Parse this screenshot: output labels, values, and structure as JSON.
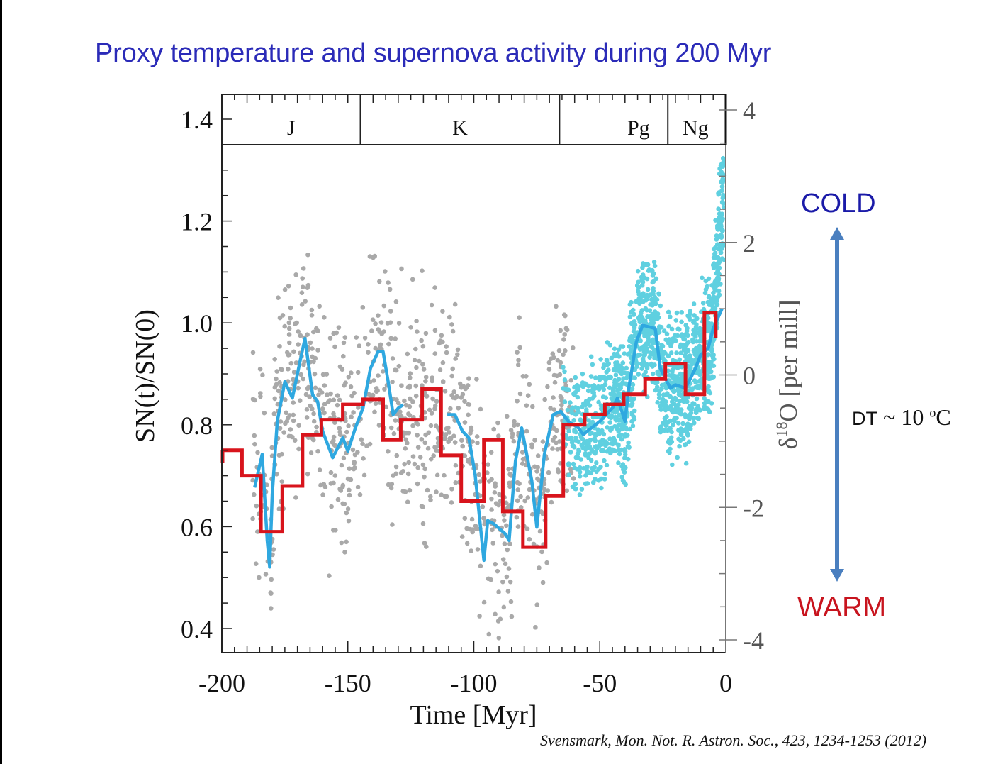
{
  "slide": {
    "title": "Proxy temperature and supernova activity during 200 Myr",
    "citation": "Svensmark, Mon. Not. R. Astron. Soc., 423, 1234-1253 (2012)",
    "annotations": {
      "cold": "COLD",
      "warm": "WARM",
      "dt_prefix": "DT",
      "dt_value": " ~ 10 ",
      "dt_unit_sup": "o",
      "dt_unit": "C",
      "arrow": "double-headed-arrow-icon"
    },
    "colors": {
      "title": "#2b2bb8",
      "cold": "#1a1aa8",
      "warm": "#c8141e",
      "arrow": "#4a7fbf",
      "sn_step": "#d8141c",
      "d18o_smoothed": "#2fa8e0",
      "d18o_scatter_old": "#a9a9a9",
      "d18o_scatter_young": "#5fd0e0"
    }
  },
  "chart_data": {
    "type": "line",
    "xlabel": "Time [Myr]",
    "ylabel_left": "SN(t)/SN(0)",
    "ylabel_right_prefix": "δ",
    "ylabel_right_sup": "18",
    "ylabel_right_suffix": "O [per mill]",
    "xlim": [
      -200,
      0
    ],
    "ylim_left": [
      0.35,
      1.45
    ],
    "ylim_right": [
      -4.1,
      4.6
    ],
    "x_ticks": [
      -200,
      -150,
      -100,
      -50,
      0
    ],
    "x_tick_labels": [
      "-200",
      "-150",
      "-100",
      "-50",
      "0"
    ],
    "y_left_ticks": [
      0.4,
      0.6,
      0.8,
      1.0,
      1.2,
      1.4
    ],
    "y_left_tick_labels": [
      "0.4",
      "0.6",
      "0.8",
      "1.0",
      "1.2",
      "1.4"
    ],
    "y_right_ticks": [
      -4,
      -2,
      0,
      2,
      4
    ],
    "y_right_tick_labels": [
      "-4",
      "-2",
      "0",
      "2",
      "4"
    ],
    "geologic_periods": [
      {
        "label": "J",
        "start": -200,
        "end": -145
      },
      {
        "label": "K",
        "start": -145,
        "end": -66
      },
      {
        "label": "Pg",
        "start": -66,
        "end": -23
      },
      {
        "label": "Ng",
        "start": -23,
        "end": -1
      }
    ],
    "grid": false,
    "series": [
      {
        "name": "Supernova rate SN(t)/SN(0)",
        "kind": "step",
        "axis": "left",
        "x_edges": [
          -200,
          -192,
          -184.5,
          -176,
          -168,
          -160.5,
          -152,
          -144,
          -136,
          -129,
          -120.5,
          -113,
          -105,
          -96,
          -88.5,
          -80.5,
          -71.5,
          -64.5,
          -56,
          -48,
          -40.5,
          -32,
          -24,
          -16,
          -8.5,
          -4
        ],
        "values": [
          0.75,
          0.7,
          0.59,
          0.68,
          0.78,
          0.81,
          0.84,
          0.85,
          0.77,
          0.81,
          0.87,
          0.74,
          0.65,
          0.77,
          0.63,
          0.56,
          0.66,
          0.8,
          0.82,
          0.84,
          0.86,
          0.89,
          0.92,
          0.86,
          1.02,
          0.97
        ]
      },
      {
        "name": "δ18O smoothed",
        "kind": "line",
        "axis": "right",
        "x": [
          -187,
          -184,
          -182,
          -181,
          -180,
          -178,
          -175,
          -172,
          -169,
          -167,
          -164,
          -162,
          -160,
          -156,
          -152,
          -150,
          -147,
          -144,
          -141,
          -138,
          -136,
          -134,
          -132,
          -130,
          -128
        ],
        "values": [
          -1.7,
          -1.2,
          -2.5,
          -2.9,
          -1.8,
          -0.7,
          -0.1,
          -0.35,
          0.2,
          0.55,
          -0.3,
          -0.4,
          -0.85,
          -1.25,
          -0.95,
          -1.15,
          -0.8,
          -0.5,
          0.1,
          0.35,
          0.35,
          -0.1,
          -0.6,
          -0.5,
          -0.45
        ],
        "x2": [
          -110.5,
          -107.5,
          -104.5,
          -102,
          -99.5,
          -96,
          -94.5,
          -92,
          -87.5,
          -86,
          -83.5,
          -81,
          -77,
          -75,
          -72,
          -68.5,
          -65.5,
          -62.5,
          -58.5,
          -56.5,
          -55,
          -50,
          -45,
          -43,
          -40,
          -38.5,
          -35.5,
          -33,
          -28,
          -26,
          -22,
          -20,
          -16,
          -14,
          -12,
          -10,
          -7,
          -5,
          -1.5
        ],
        "values2": [
          -0.6,
          -0.6,
          -0.85,
          -0.95,
          -1.5,
          -2.8,
          -2.2,
          -2.25,
          -2.4,
          -2.5,
          -1.3,
          -0.8,
          -1.6,
          -2.3,
          -1.2,
          -0.6,
          -0.55,
          -0.7,
          -0.8,
          -0.9,
          -0.85,
          -0.7,
          -0.5,
          -0.35,
          -0.7,
          -0.2,
          0.5,
          0.75,
          0.7,
          0.1,
          -0.2,
          -0.15,
          -0.2,
          -0.05,
          0.1,
          0.3,
          0.4,
          0.7,
          1.0
        ]
      },
      {
        "name": "δ18O measurements (older, grey)",
        "kind": "scatter",
        "axis": "right",
        "range_x": [
          -188,
          -55
        ],
        "typical_range_y": [
          -3.9,
          2.1
        ]
      },
      {
        "name": "δ18O measurements (Cenozoic, cyan)",
        "kind": "scatter",
        "axis": "right",
        "range_x": [
          -65,
          0
        ],
        "typical_range_y": [
          -3.5,
          3.3
        ]
      }
    ]
  }
}
